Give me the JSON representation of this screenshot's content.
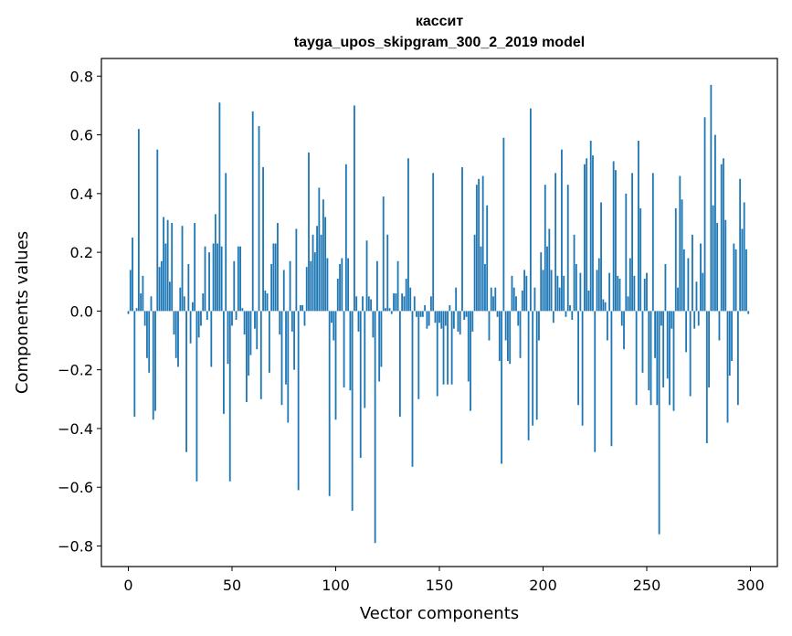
{
  "chart_data": {
    "type": "bar",
    "title": "кассит",
    "subtitle": "tayga_upos_skipgram_300_2_2019 model",
    "xlabel": "Vector components",
    "ylabel": "Components values",
    "xlim": [
      -13,
      313
    ],
    "ylim": [
      -0.87,
      0.86
    ],
    "xticks": [
      0,
      50,
      100,
      150,
      200,
      250,
      300
    ],
    "yticks": [
      -0.8,
      -0.6,
      -0.4,
      -0.2,
      0.0,
      0.2,
      0.4,
      0.6,
      0.8
    ],
    "ytick_labels": [
      "−0.8",
      "−0.6",
      "−0.4",
      "−0.2",
      "0.0",
      "0.2",
      "0.4",
      "0.6",
      "0.8"
    ],
    "bar_color": "#1f77b4",
    "n_components": 300,
    "values": [
      -0.01,
      0.14,
      0.25,
      -0.36,
      0.01,
      0.62,
      0.06,
      0.12,
      -0.05,
      -0.16,
      -0.21,
      0.05,
      -0.37,
      -0.34,
      0.55,
      0.15,
      0.17,
      0.32,
      0.23,
      0.31,
      0.1,
      0.3,
      -0.08,
      -0.16,
      -0.19,
      0.08,
      0.29,
      0.05,
      -0.48,
      0.16,
      -0.11,
      0.03,
      0.3,
      -0.58,
      -0.09,
      -0.05,
      0.06,
      0.22,
      -0.03,
      0.2,
      -0.19,
      0.23,
      0.33,
      0.23,
      0.71,
      0.22,
      -0.35,
      0.47,
      -0.18,
      -0.58,
      -0.05,
      0.17,
      -0.03,
      0.22,
      0.22,
      0.01,
      -0.08,
      -0.31,
      -0.22,
      -0.15,
      0.68,
      -0.06,
      -0.13,
      0.63,
      -0.3,
      0.49,
      0.07,
      0.06,
      -0.21,
      0.16,
      0.23,
      0.23,
      0.3,
      -0.08,
      -0.32,
      0.14,
      -0.25,
      -0.38,
      0.17,
      -0.07,
      -0.2,
      0.28,
      -0.61,
      0.02,
      0.02,
      -0.05,
      0.15,
      0.54,
      0.17,
      0.26,
      0.2,
      0.29,
      0.42,
      0.26,
      0.38,
      0.32,
      0.18,
      -0.63,
      -0.04,
      -0.1,
      -0.37,
      0.11,
      0.16,
      0.18,
      -0.26,
      0.5,
      0.18,
      -0.27,
      -0.68,
      0.7,
      0.05,
      -0.07,
      -0.5,
      0.05,
      -0.33,
      0.24,
      0.05,
      0.04,
      -0.09,
      -0.79,
      0.17,
      -0.24,
      -0.19,
      0.39,
      0.01,
      0.26,
      0.01,
      -0.01,
      0.06,
      0.06,
      0.17,
      -0.36,
      0.06,
      0.05,
      0.11,
      0.52,
      0.08,
      -0.53,
      0.05,
      -0.02,
      -0.3,
      -0.02,
      -0.02,
      0.02,
      -0.06,
      -0.05,
      0.05,
      0.47,
      -0.04,
      -0.29,
      -0.04,
      -0.06,
      -0.25,
      -0.05,
      -0.25,
      0.02,
      -0.25,
      -0.06,
      0.08,
      -0.07,
      -0.08,
      0.49,
      -0.03,
      -0.02,
      -0.24,
      -0.34,
      -0.07,
      0.26,
      0.43,
      0.45,
      0.22,
      0.46,
      0.16,
      0.36,
      -0.1,
      0.08,
      0.05,
      0.08,
      -0.02,
      -0.17,
      -0.52,
      0.59,
      -0.1,
      -0.17,
      -0.18,
      0.12,
      0.08,
      0.05,
      -0.05,
      -0.16,
      0.07,
      0.14,
      0.12,
      -0.44,
      0.69,
      -0.39,
      0.08,
      -0.37,
      -0.1,
      0.2,
      0.14,
      0.43,
      0.22,
      0.28,
      0.14,
      -0.04,
      0.47,
      0.12,
      0.08,
      0.55,
      0.12,
      -0.02,
      0.43,
      0.02,
      -0.03,
      0.26,
      0.16,
      -0.32,
      0.13,
      -0.39,
      0.5,
      0.52,
      0.07,
      0.58,
      0.53,
      -0.48,
      0.14,
      0.18,
      0.37,
      0.04,
      0.03,
      -0.1,
      0.13,
      -0.46,
      0.51,
      0.48,
      0.12,
      0.11,
      -0.05,
      -0.13,
      0.4,
      0.05,
      0.18,
      0.47,
      0.12,
      -0.32,
      0.58,
      0.35,
      -0.21,
      0.11,
      0.13,
      -0.27,
      -0.32,
      0.47,
      -0.16,
      -0.32,
      -0.76,
      -0.05,
      -0.26,
      0.16,
      -0.23,
      -0.32,
      -0.06,
      -0.34,
      0.35,
      0.08,
      0.46,
      0.38,
      0.21,
      -0.14,
      0.18,
      -0.29,
      0.26,
      -0.06,
      0.1,
      -0.05,
      0.23,
      0.13,
      0.66,
      -0.45,
      -0.26,
      0.77,
      0.36,
      0.6,
      0.3,
      -0.1,
      0.5,
      0.52,
      0.31,
      -0.38,
      -0.22,
      -0.17,
      0.23,
      0.21,
      -0.32,
      0.45,
      0.28,
      0.37,
      0.21,
      -0.01
    ]
  }
}
